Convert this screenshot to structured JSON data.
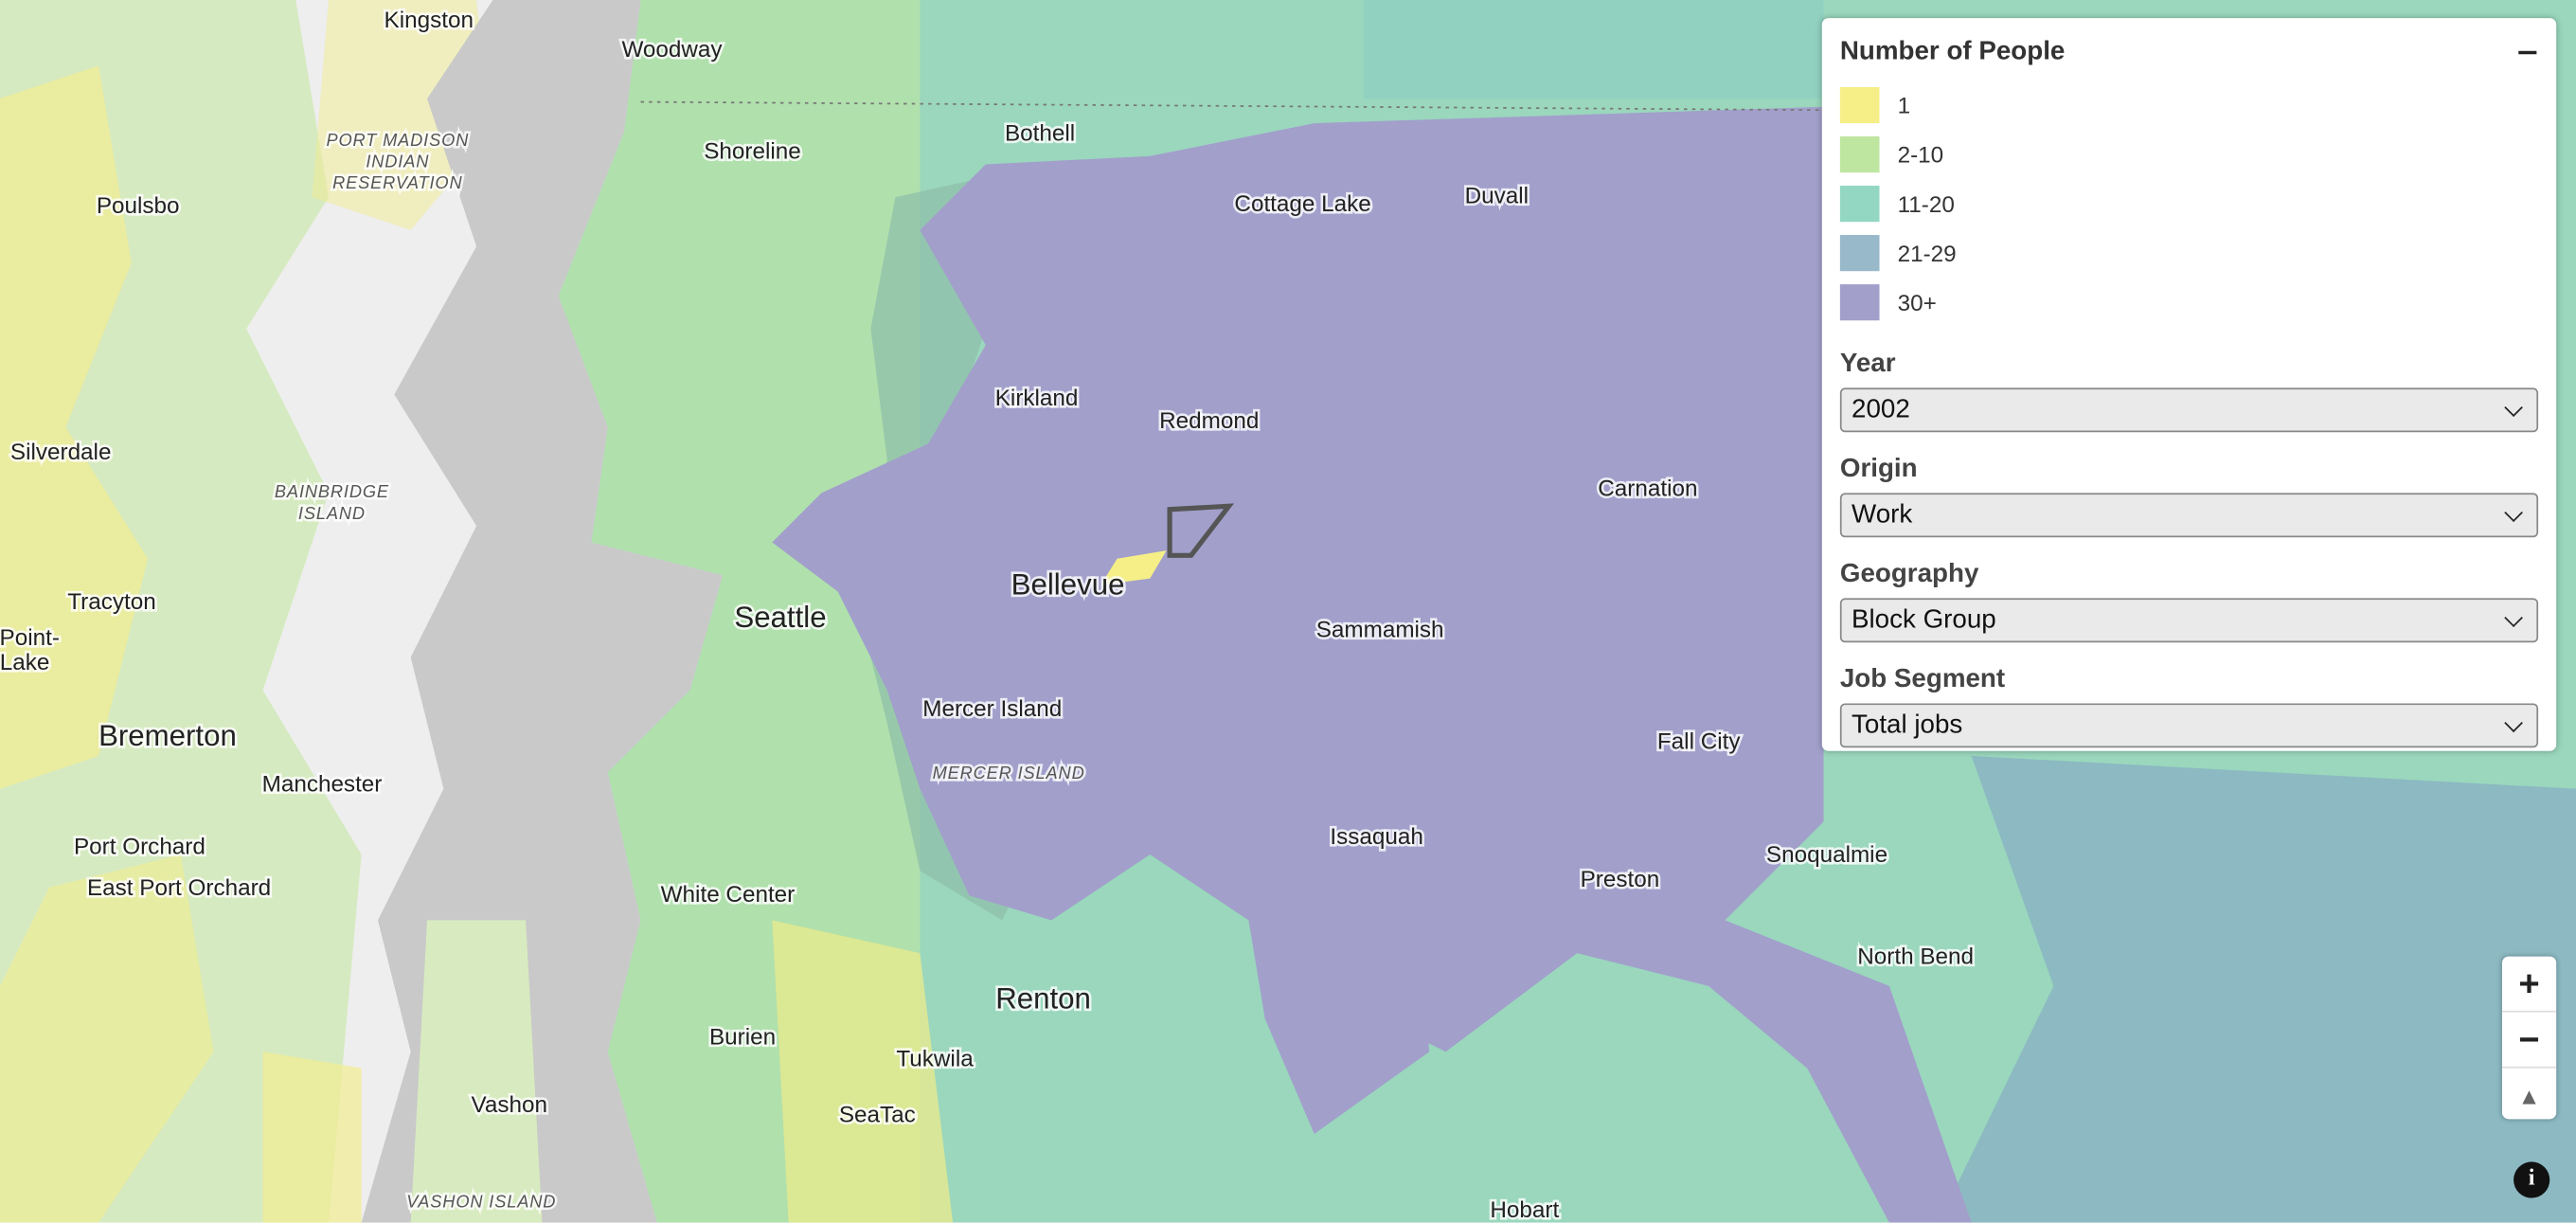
{
  "legend": {
    "title": "Number of People",
    "items": [
      {
        "label": "1",
        "color": "#f6ef88"
      },
      {
        "label": "2-10",
        "color": "#bfe6a0"
      },
      {
        "label": "11-20",
        "color": "#93d7c3"
      },
      {
        "label": "21-29",
        "color": "#97b9c9"
      },
      {
        "label": "30+",
        "color": "#a29fcb"
      }
    ]
  },
  "controls": [
    {
      "label": "Year",
      "value": "2002"
    },
    {
      "label": "Origin",
      "value": "Work"
    },
    {
      "label": "Geography",
      "value": "Block Group"
    },
    {
      "label": "Job Segment",
      "value": "Total jobs"
    }
  ],
  "map_labels": [
    "Kingston",
    "Woodway",
    "Bothell",
    "Shoreline",
    "Poulsbo",
    "Cottage Lake",
    "Duvall",
    "PORT MADISON",
    "INDIAN",
    "RESERVATION",
    "Kirkland",
    "Redmond",
    "Silverdale",
    "Carnation",
    "BAINBRIDGE",
    "ISLAND",
    "Bellevue",
    "Seattle",
    "Tracyton",
    "Point-",
    "Lake",
    "Sammamish",
    "Mercer Island",
    "MERCER ISLAND",
    "Bremerton",
    "Fall City",
    "Manchester",
    "Issaquah",
    "Port Orchard",
    "Snoqualmie",
    "East Port Orchard",
    "White Center",
    "Preston",
    "North Bend",
    "Renton",
    "Burien",
    "Tukwila",
    "Vashon",
    "SeaTac",
    "VASHON ISLAND",
    "Hobart"
  ]
}
